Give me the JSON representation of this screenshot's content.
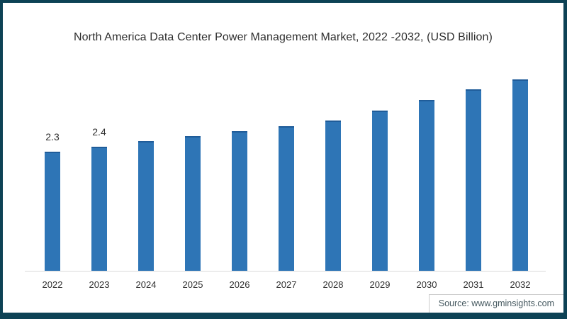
{
  "frame": {
    "border_color": "#0D4255",
    "background_color": "#ffffff"
  },
  "title": "North America Data Center Power Management Market, 2022 -2032, (USD Billion)",
  "source": {
    "label": "Source: www.gminsights.com"
  },
  "chart_data": {
    "type": "bar",
    "title": "North America Data Center Power Management Market, 2022 -2032, (USD Billion)",
    "unit": "USD Billion",
    "categories": [
      "2022",
      "2023",
      "2024",
      "2025",
      "2026",
      "2027",
      "2028",
      "2029",
      "2030",
      "2031",
      "2032"
    ],
    "values": [
      2.3,
      2.4,
      2.5,
      2.6,
      2.7,
      2.8,
      2.9,
      3.1,
      3.3,
      3.5,
      3.7
    ],
    "value_labels": [
      "2.3",
      "2.4",
      null,
      null,
      null,
      null,
      null,
      null,
      null,
      null,
      null
    ],
    "bar_color": "#2E75B6",
    "bar_top_edge_color": "#1F5C99",
    "axis_line_color": "#D9D9D9",
    "ylim": [
      0,
      3.85
    ],
    "grid": false,
    "legend": false,
    "y_axis_shown": false,
    "x_axis_shown": true
  }
}
